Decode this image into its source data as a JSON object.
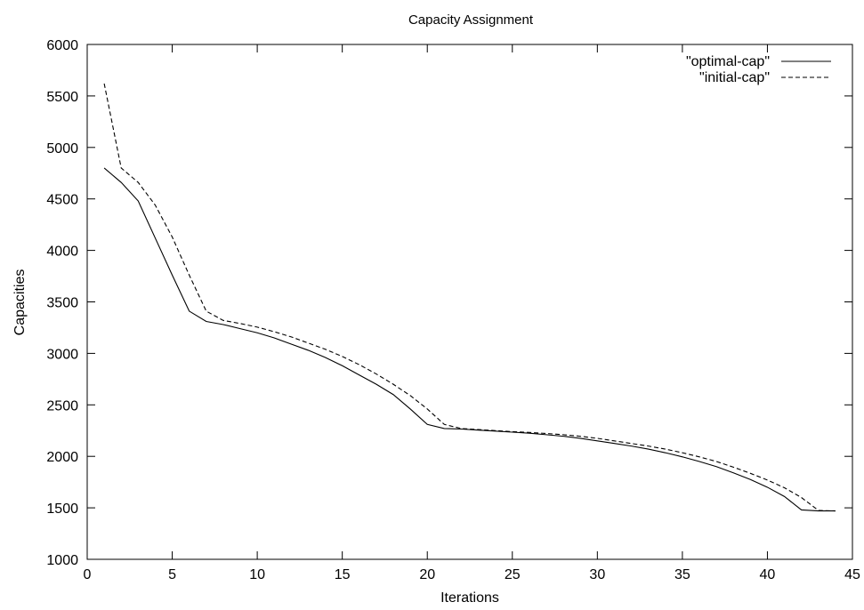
{
  "chart_data": {
    "type": "line",
    "title": "Capacity Assignment",
    "xlabel": "Iterations",
    "ylabel": "Capacities",
    "xlim": [
      0,
      45
    ],
    "ylim": [
      1000,
      6000
    ],
    "x_ticks": [
      0,
      5,
      10,
      15,
      20,
      25,
      30,
      35,
      40,
      45
    ],
    "y_ticks": [
      1000,
      1500,
      2000,
      2500,
      3000,
      3500,
      4000,
      4500,
      5000,
      5500,
      6000
    ],
    "grid": false,
    "legend_position": "top-right",
    "series": [
      {
        "name": "\"optimal-cap\"",
        "style": "solid",
        "color": "#000000",
        "x": [
          1,
          2,
          3,
          4,
          5,
          6,
          7,
          8,
          9,
          10,
          11,
          12,
          13,
          14,
          15,
          16,
          17,
          18,
          19,
          20,
          21,
          22,
          23,
          24,
          25,
          26,
          27,
          28,
          29,
          30,
          31,
          32,
          33,
          34,
          35,
          36,
          37,
          38,
          39,
          40,
          41,
          42,
          43,
          44
        ],
        "y": [
          4800,
          4660,
          4480,
          4120,
          3760,
          3410,
          3310,
          3280,
          3240,
          3200,
          3150,
          3090,
          3030,
          2960,
          2880,
          2790,
          2700,
          2600,
          2460,
          2310,
          2270,
          2265,
          2255,
          2245,
          2235,
          2225,
          2210,
          2195,
          2175,
          2150,
          2125,
          2100,
          2070,
          2035,
          1995,
          1950,
          1900,
          1840,
          1775,
          1700,
          1610,
          1480,
          1470,
          1470
        ]
      },
      {
        "name": "\"initial-cap\"",
        "style": "dashed",
        "color": "#000000",
        "x": [
          1,
          2,
          3,
          4,
          5,
          6,
          7,
          8,
          9,
          10,
          11,
          12,
          13,
          14,
          15,
          16,
          17,
          18,
          19,
          20,
          21,
          22,
          23,
          24,
          25,
          26,
          27,
          28,
          29,
          30,
          31,
          32,
          33,
          34,
          35,
          36,
          37,
          38,
          39,
          40,
          41,
          42,
          43,
          44
        ],
        "y": [
          5620,
          4800,
          4660,
          4440,
          4130,
          3760,
          3410,
          3320,
          3290,
          3255,
          3210,
          3160,
          3100,
          3040,
          2970,
          2890,
          2800,
          2700,
          2590,
          2460,
          2310,
          2270,
          2260,
          2250,
          2240,
          2232,
          2222,
          2210,
          2195,
          2175,
          2150,
          2125,
          2100,
          2070,
          2035,
          1995,
          1950,
          1895,
          1835,
          1770,
          1695,
          1600,
          1475,
          1470
        ]
      }
    ]
  }
}
